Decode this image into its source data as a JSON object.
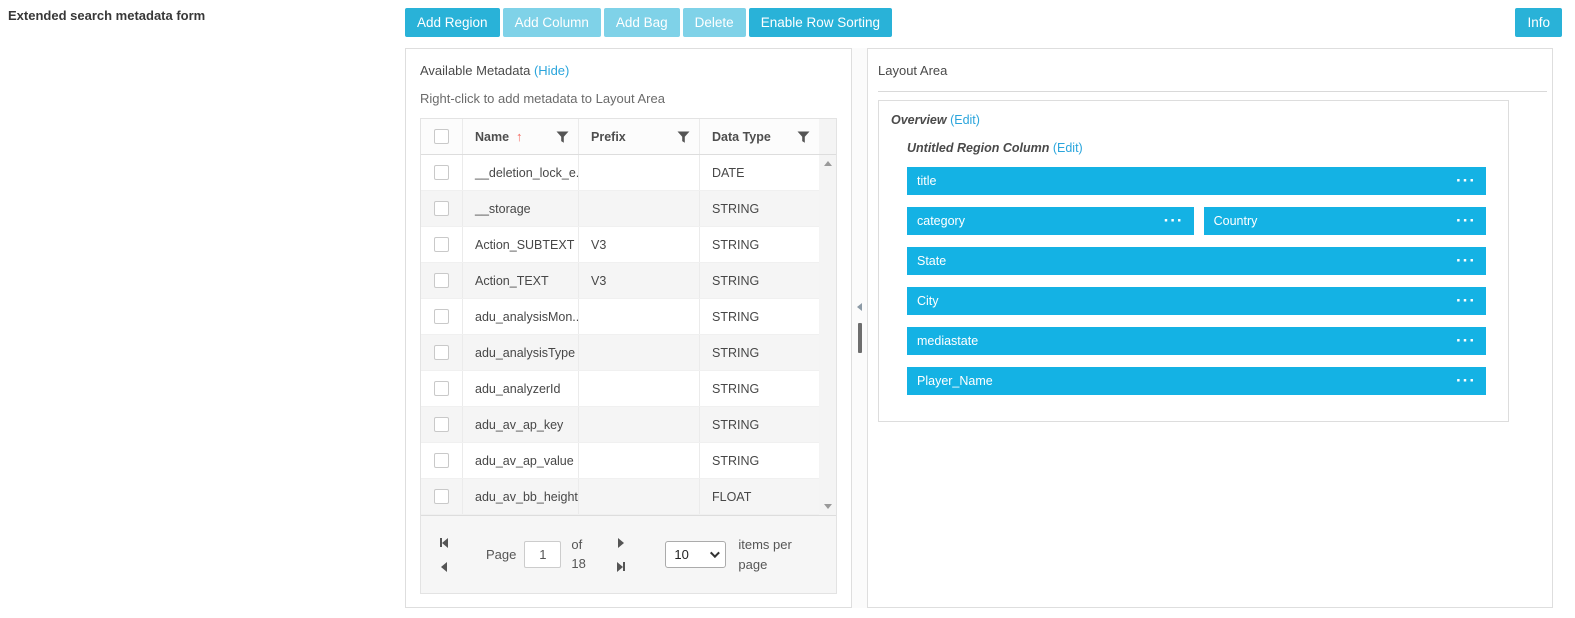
{
  "page": {
    "title": "Extended search metadata form"
  },
  "toolbar": {
    "buttons": [
      {
        "label": "Add Region",
        "enabled": true
      },
      {
        "label": "Add Column",
        "enabled": false
      },
      {
        "label": "Add Bag",
        "enabled": false
      },
      {
        "label": "Delete",
        "enabled": false
      },
      {
        "label": "Enable Row Sorting",
        "enabled": true
      }
    ],
    "info_label": "Info"
  },
  "available_metadata": {
    "title": "Available Metadata",
    "hide_link": "(Hide)",
    "hint": "Right-click to add metadata to Layout Area",
    "grid": {
      "columns": [
        "Name",
        "Prefix",
        "Data Type"
      ],
      "sorted_column": "Name",
      "sort_direction": "asc",
      "rows": [
        {
          "name": "__deletion_lock_e...",
          "prefix": "",
          "data_type": "DATE"
        },
        {
          "name": "__storage",
          "prefix": "",
          "data_type": "STRING"
        },
        {
          "name": "Action_SUBTEXT",
          "prefix": "V3",
          "data_type": "STRING"
        },
        {
          "name": "Action_TEXT",
          "prefix": "V3",
          "data_type": "STRING"
        },
        {
          "name": "adu_analysisMon...",
          "prefix": "",
          "data_type": "STRING"
        },
        {
          "name": "adu_analysisType",
          "prefix": "",
          "data_type": "STRING"
        },
        {
          "name": "adu_analyzerId",
          "prefix": "",
          "data_type": "STRING"
        },
        {
          "name": "adu_av_ap_key",
          "prefix": "",
          "data_type": "STRING"
        },
        {
          "name": "adu_av_ap_value",
          "prefix": "",
          "data_type": "STRING"
        },
        {
          "name": "adu_av_bb_height",
          "prefix": "",
          "data_type": "FLOAT"
        }
      ]
    },
    "pager": {
      "page_label": "Page",
      "current_page": "1",
      "of_label": "of",
      "total_pages": "18",
      "page_size": "10",
      "items_per_page_label": "items per page"
    }
  },
  "layout_area": {
    "title": "Layout Area",
    "region": {
      "label": "Overview",
      "edit_link": "(Edit)"
    },
    "column": {
      "label": "Untitled Region Column",
      "edit_link": "(Edit)"
    },
    "items": [
      {
        "label": "title",
        "width": "full"
      },
      {
        "label": "category",
        "width": "half"
      },
      {
        "label": "Country",
        "width": "half"
      },
      {
        "label": "State",
        "width": "full"
      },
      {
        "label": "City",
        "width": "full"
      },
      {
        "label": "mediastate",
        "width": "full"
      },
      {
        "label": "Player_Name",
        "width": "full"
      }
    ]
  },
  "colors": {
    "accent": "#29b2d8",
    "accent_disabled": "#7fd2e8",
    "bar_blue": "#14b2e4",
    "link_blue": "#2aa5dc",
    "sort_arrow_red": "#f4695f"
  }
}
